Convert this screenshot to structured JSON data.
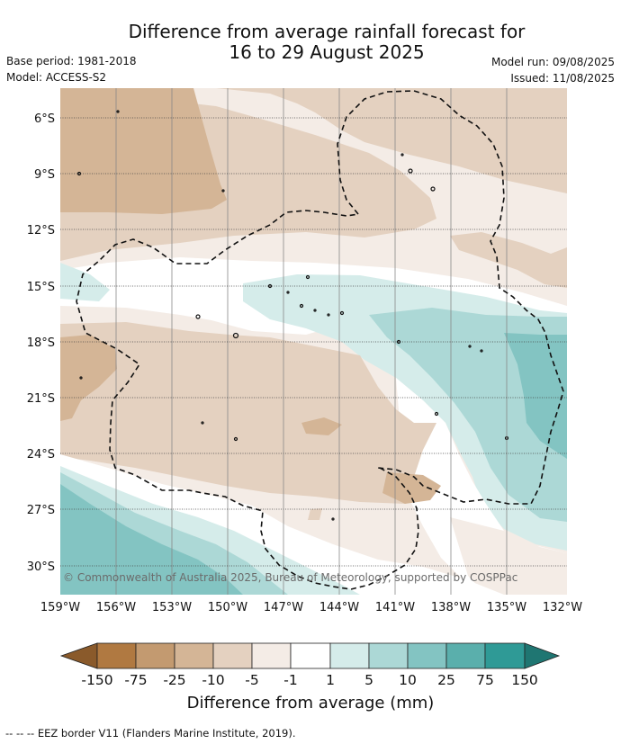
{
  "header": {
    "title_line1": "Difference from average rainfall forecast for",
    "title_line2": "16 to 29 August 2025",
    "base_period": "Base period: 1981-2018",
    "model": "Model: ACCESS-S2",
    "model_run": "Model run: 09/08/2025",
    "issued": "Issued: 11/08/2025"
  },
  "map": {
    "copyright": "© Commonwealth of Australia 2025, Bureau of Meteorology, supported by COSPPac",
    "lat_labels": [
      "6°S",
      "9°S",
      "12°S",
      "15°S",
      "18°S",
      "21°S",
      "24°S",
      "27°S",
      "30°S"
    ],
    "lon_labels": [
      "159°W",
      "156°W",
      "153°W",
      "150°W",
      "147°W",
      "144°W",
      "141°W",
      "138°W",
      "135°W",
      "132°W"
    ],
    "colors": {
      "dry_extreme": "#8a5a2b",
      "dry_150": "#b07941",
      "dry_75": "#c39a70",
      "dry_25": "#d4b596",
      "dry_10": "#e4d1c0",
      "dry_5": "#f4ece6",
      "neutral": "#ffffff",
      "wet_1": "#d5ecea",
      "wet_5": "#acd8d6",
      "wet_10": "#83c4c2",
      "wet_25": "#5aafac",
      "wet_75": "#2f9a96",
      "wet_extreme": "#1f7672"
    }
  },
  "colorbar": {
    "labels": [
      "-150",
      "-75",
      "-25",
      "-10",
      "-5",
      "-1",
      "1",
      "5",
      "10",
      "25",
      "75",
      "150"
    ],
    "title": "Difference from average (mm)"
  },
  "footnote": "-- -- -- EEZ border V11 (Flanders Marine Institute, 2019)."
}
